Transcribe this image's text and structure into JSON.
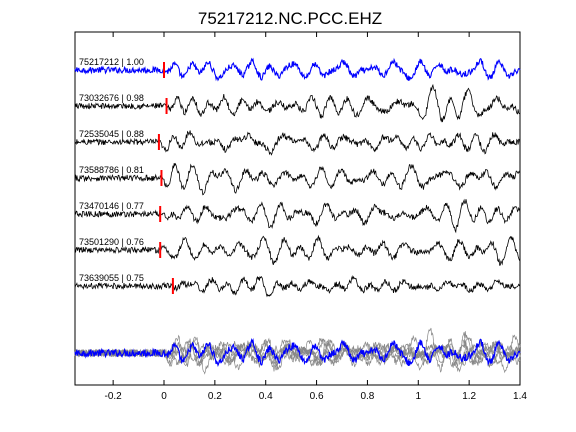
{
  "chart_data": {
    "type": "line",
    "title": "75217212.NC.PCC.EHZ",
    "xlabel": "",
    "ylabel": "",
    "xlim": [
      -0.35,
      1.4
    ],
    "xticks": [
      {
        "value": -0.2,
        "label": "-0.2"
      },
      {
        "value": 0,
        "label": "0"
      },
      {
        "value": 0.2,
        "label": "0.2"
      },
      {
        "value": 0.4,
        "label": "0.4"
      },
      {
        "value": 0.6,
        "label": "0.6"
      },
      {
        "value": 0.8,
        "label": "0.8"
      },
      {
        "value": 1.0,
        "label": "1"
      },
      {
        "value": 1.2,
        "label": "1.2"
      },
      {
        "value": 1.4,
        "label": "1.4"
      }
    ],
    "grid": false,
    "legend": "none",
    "colors": {
      "reference": "#0000ff",
      "trace": "#000000",
      "stack": "#888888",
      "pick": "#ff0000"
    },
    "traces": [
      {
        "label": "75217212 | 1.00",
        "pick": 0.0,
        "color": "#0000ff"
      },
      {
        "label": "73032676 | 0.98",
        "pick": 0.01,
        "color": "#000000"
      },
      {
        "label": "72535045 | 0.88",
        "pick": -0.02,
        "color": "#000000"
      },
      {
        "label": "73588786 | 0.81",
        "pick": -0.01,
        "color": "#000000"
      },
      {
        "label": "73470146 | 0.77",
        "pick": -0.015,
        "color": "#000000"
      },
      {
        "label": "73501290 | 0.76",
        "pick": -0.015,
        "color": "#000000"
      },
      {
        "label": "73639055 | 0.75",
        "pick": 0.035,
        "color": "#000000"
      }
    ],
    "stack": {
      "description_visible": false
    }
  }
}
